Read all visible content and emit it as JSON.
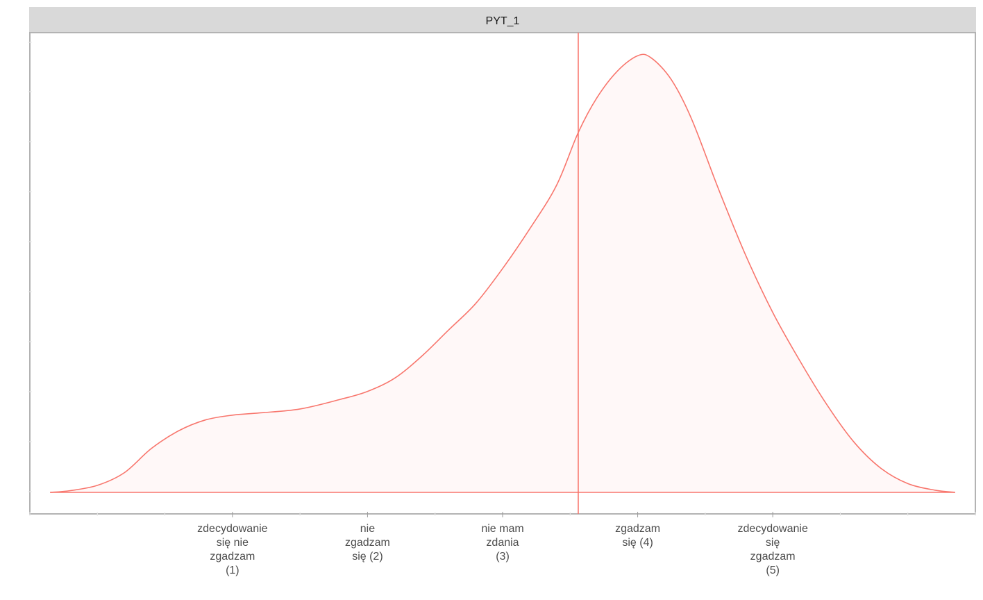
{
  "chart_data": {
    "type": "density",
    "facet": "PYT_1",
    "x_tick_labels": [
      {
        "x": 1,
        "lines": [
          "zdecydowanie",
          "się nie",
          "zgadzam",
          "(1)"
        ]
      },
      {
        "x": 2,
        "lines": [
          "nie",
          "zgadzam",
          "się (2)"
        ]
      },
      {
        "x": 3,
        "lines": [
          "nie mam",
          "zdania",
          "(3)"
        ]
      },
      {
        "x": 4,
        "lines": [
          "zgadzam",
          "się (4)"
        ]
      },
      {
        "x": 5,
        "lines": [
          "zdecydowanie",
          "się",
          "zgadzam",
          "(5)"
        ]
      }
    ],
    "xlim": [
      -0.5,
      6.5
    ],
    "ylim": [
      0,
      1
    ],
    "y_ticks_visible": false,
    "mean_line_x": 3.56,
    "density": {
      "x": [
        -0.35,
        -0.2,
        0,
        0.2,
        0.4,
        0.6,
        0.8,
        1.0,
        1.2,
        1.5,
        1.8,
        2.0,
        2.2,
        2.4,
        2.6,
        2.8,
        3.0,
        3.2,
        3.4,
        3.56,
        3.7,
        3.85,
        4.0,
        4.1,
        4.25,
        4.4,
        4.6,
        4.8,
        5.0,
        5.2,
        5.4,
        5.6,
        5.8,
        6.0,
        6.2,
        6.35
      ],
      "y": [
        0.0,
        0.004,
        0.016,
        0.045,
        0.1,
        0.14,
        0.165,
        0.176,
        0.181,
        0.19,
        0.212,
        0.23,
        0.26,
        0.31,
        0.37,
        0.43,
        0.51,
        0.6,
        0.7,
        0.82,
        0.9,
        0.96,
        0.995,
        0.99,
        0.94,
        0.85,
        0.69,
        0.54,
        0.41,
        0.3,
        0.2,
        0.115,
        0.055,
        0.02,
        0.005,
        0.0
      ]
    },
    "colors": {
      "line": "#F8766D",
      "fill": "rgba(248,118,109,0.05)",
      "strip_bg": "#D9D9D9",
      "panel_border": "#B3B3B3",
      "grid": "#EBEBEB"
    }
  }
}
